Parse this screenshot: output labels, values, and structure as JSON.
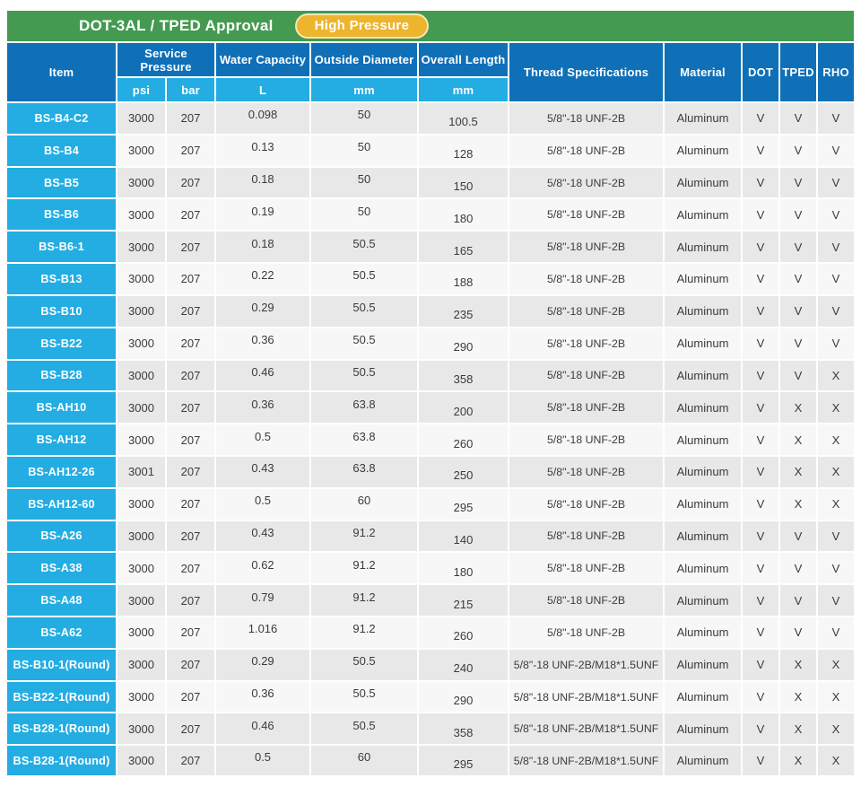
{
  "title_bar": {
    "title": "DOT-3AL / TPED Approval",
    "badge": "High Pressure"
  },
  "colors": {
    "title_green": "#449a50",
    "badge_yellow": "#edb42e",
    "badge_border": "#f7e6b4",
    "header_blue": "#0f70b8",
    "subheader_cyan": "#23ade3",
    "row_gray": "#e8e8e8",
    "row_light": "#f7f7f7",
    "body_text": "#3b3b3b"
  },
  "table": {
    "header": {
      "item": "Item",
      "service_pressure": "Service Pressure",
      "psi": "psi",
      "bar": "bar",
      "water_capacity": "Water Capacity",
      "water_unit": "L",
      "outside_diameter": "Outside Diameter",
      "outside_unit": "mm",
      "overall_length": "Overall Length",
      "overall_unit": "mm",
      "thread": "Thread Specifications",
      "material": "Material",
      "dot": "DOT",
      "tped": "TPED",
      "rho": "RHO"
    },
    "rows": [
      {
        "item": "BS-B4-C2",
        "psi": "3000",
        "bar": "207",
        "capacity": "0.098",
        "diameter": "50",
        "length": "100.5",
        "thread": "5/8\"-18 UNF-2B",
        "material": "Aluminum",
        "dot": "V",
        "tped": "V",
        "rho": "V",
        "shade": "gray"
      },
      {
        "item": "BS-B4",
        "psi": "3000",
        "bar": "207",
        "capacity": "0.13",
        "diameter": "50",
        "length": "128",
        "thread": "5/8\"-18 UNF-2B",
        "material": "Aluminum",
        "dot": "V",
        "tped": "V",
        "rho": "V",
        "shade": "light"
      },
      {
        "item": "BS-B5",
        "psi": "3000",
        "bar": "207",
        "capacity": "0.18",
        "diameter": "50",
        "length": "150",
        "thread": "5/8\"-18 UNF-2B",
        "material": "Aluminum",
        "dot": "V",
        "tped": "V",
        "rho": "V",
        "shade": "gray"
      },
      {
        "item": "BS-B6",
        "psi": "3000",
        "bar": "207",
        "capacity": "0.19",
        "diameter": "50",
        "length": "180",
        "thread": "5/8\"-18 UNF-2B",
        "material": "Aluminum",
        "dot": "V",
        "tped": "V",
        "rho": "V",
        "shade": "light"
      },
      {
        "item": "BS-B6-1",
        "psi": "3000",
        "bar": "207",
        "capacity": "0.18",
        "diameter": "50.5",
        "length": "165",
        "thread": "5/8\"-18 UNF-2B",
        "material": "Aluminum",
        "dot": "V",
        "tped": "V",
        "rho": "V",
        "shade": "gray"
      },
      {
        "item": "BS-B13",
        "psi": "3000",
        "bar": "207",
        "capacity": "0.22",
        "diameter": "50.5",
        "length": "188",
        "thread": "5/8\"-18 UNF-2B",
        "material": "Aluminum",
        "dot": "V",
        "tped": "V",
        "rho": "V",
        "shade": "light"
      },
      {
        "item": "BS-B10",
        "psi": "3000",
        "bar": "207",
        "capacity": "0.29",
        "diameter": "50.5",
        "length": "235",
        "thread": "5/8\"-18 UNF-2B",
        "material": "Aluminum",
        "dot": "V",
        "tped": "V",
        "rho": "V",
        "shade": "gray"
      },
      {
        "item": "BS-B22",
        "psi": "3000",
        "bar": "207",
        "capacity": "0.36",
        "diameter": "50.5",
        "length": "290",
        "thread": "5/8\"-18 UNF-2B",
        "material": "Aluminum",
        "dot": "V",
        "tped": "V",
        "rho": "V",
        "shade": "light"
      },
      {
        "item": "BS-B28",
        "psi": "3000",
        "bar": "207",
        "capacity": "0.46",
        "diameter": "50.5",
        "length": "358",
        "thread": "5/8\"-18 UNF-2B",
        "material": "Aluminum",
        "dot": "V",
        "tped": "V",
        "rho": "X",
        "shade": "gray"
      },
      {
        "item": "BS-AH10",
        "psi": "3000",
        "bar": "207",
        "capacity": "0.36",
        "diameter": "63.8",
        "length": "200",
        "thread": "5/8\"-18 UNF-2B",
        "material": "Aluminum",
        "dot": "V",
        "tped": "X",
        "rho": "X",
        "shade": "gray"
      },
      {
        "item": "BS-AH12",
        "psi": "3000",
        "bar": "207",
        "capacity": "0.5",
        "diameter": "63.8",
        "length": "260",
        "thread": "5/8\"-18 UNF-2B",
        "material": "Aluminum",
        "dot": "V",
        "tped": "X",
        "rho": "X",
        "shade": "light"
      },
      {
        "item": "BS-AH12-26",
        "psi": "3001",
        "bar": "207",
        "capacity": "0.43",
        "diameter": "63.8",
        "length": "250",
        "thread": "5/8\"-18 UNF-2B",
        "material": "Aluminum",
        "dot": "V",
        "tped": "X",
        "rho": "X",
        "shade": "gray"
      },
      {
        "item": "BS-AH12-60",
        "psi": "3000",
        "bar": "207",
        "capacity": "0.5",
        "diameter": "60",
        "length": "295",
        "thread": "5/8\"-18 UNF-2B",
        "material": "Aluminum",
        "dot": "V",
        "tped": "X",
        "rho": "X",
        "shade": "light"
      },
      {
        "item": "BS-A26",
        "psi": "3000",
        "bar": "207",
        "capacity": "0.43",
        "diameter": "91.2",
        "length": "140",
        "thread": "5/8\"-18 UNF-2B",
        "material": "Aluminum",
        "dot": "V",
        "tped": "V",
        "rho": "V",
        "shade": "gray"
      },
      {
        "item": "BS-A38",
        "psi": "3000",
        "bar": "207",
        "capacity": "0.62",
        "diameter": "91.2",
        "length": "180",
        "thread": "5/8\"-18 UNF-2B",
        "material": "Aluminum",
        "dot": "V",
        "tped": "V",
        "rho": "V",
        "shade": "light"
      },
      {
        "item": "BS-A48",
        "psi": "3000",
        "bar": "207",
        "capacity": "0.79",
        "diameter": "91.2",
        "length": "215",
        "thread": "5/8\"-18 UNF-2B",
        "material": "Aluminum",
        "dot": "V",
        "tped": "V",
        "rho": "V",
        "shade": "gray"
      },
      {
        "item": "BS-A62",
        "psi": "3000",
        "bar": "207",
        "capacity": "1.016",
        "diameter": "91.2",
        "length": "260",
        "thread": "5/8\"-18 UNF-2B",
        "material": "Aluminum",
        "dot": "V",
        "tped": "V",
        "rho": "V",
        "shade": "light"
      },
      {
        "item": "BS-B10-1(Round)",
        "psi": "3000",
        "bar": "207",
        "capacity": "0.29",
        "diameter": "50.5",
        "length": "240",
        "thread": "5/8\"-18 UNF-2B/M18*1.5UNF",
        "material": "Aluminum",
        "dot": "V",
        "tped": "X",
        "rho": "X",
        "shade": "gray"
      },
      {
        "item": "BS-B22-1(Round)",
        "psi": "3000",
        "bar": "207",
        "capacity": "0.36",
        "diameter": "50.5",
        "length": "290",
        "thread": "5/8\"-18 UNF-2B/M18*1.5UNF",
        "material": "Aluminum",
        "dot": "V",
        "tped": "X",
        "rho": "X",
        "shade": "light"
      },
      {
        "item": "BS-B28-1(Round)",
        "psi": "3000",
        "bar": "207",
        "capacity": "0.46",
        "diameter": "50.5",
        "length": "358",
        "thread": "5/8\"-18 UNF-2B/M18*1.5UNF",
        "material": "Aluminum",
        "dot": "V",
        "tped": "X",
        "rho": "X",
        "shade": "gray"
      },
      {
        "item": "BS-B28-1(Round)",
        "psi": "3000",
        "bar": "207",
        "capacity": "0.5",
        "diameter": "60",
        "length": "295",
        "thread": "5/8\"-18 UNF-2B/M18*1.5UNF",
        "material": "Aluminum",
        "dot": "V",
        "tped": "X",
        "rho": "X",
        "shade": "gray"
      }
    ]
  }
}
